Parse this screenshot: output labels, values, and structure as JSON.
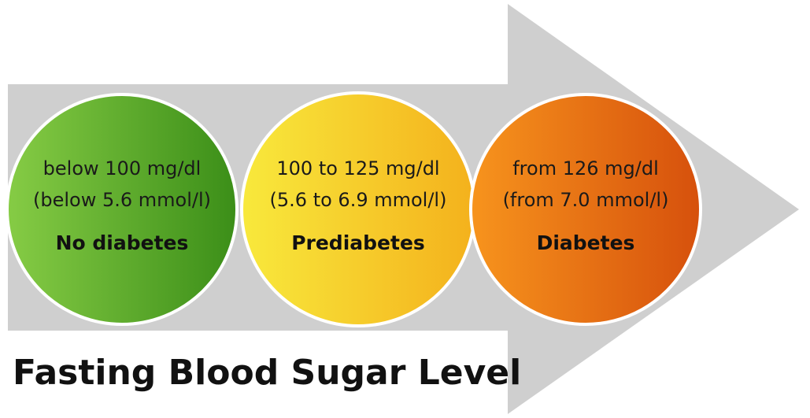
{
  "title": "Fasting Blood Sugar Level",
  "nodes": [
    {
      "range_mg": "below 100 mg/dl",
      "range_mmol": "(below 5.6 mmol/l)",
      "label": "No diabetes"
    },
    {
      "range_mg": "100 to 125 mg/dl",
      "range_mmol": "(5.6 to 6.9 mmol/l)",
      "label": "Prediabetes"
    },
    {
      "range_mg": "from 126 mg/dl",
      "range_mmol": "(from 7.0 mmol/l)",
      "label": "Diabetes"
    }
  ]
}
